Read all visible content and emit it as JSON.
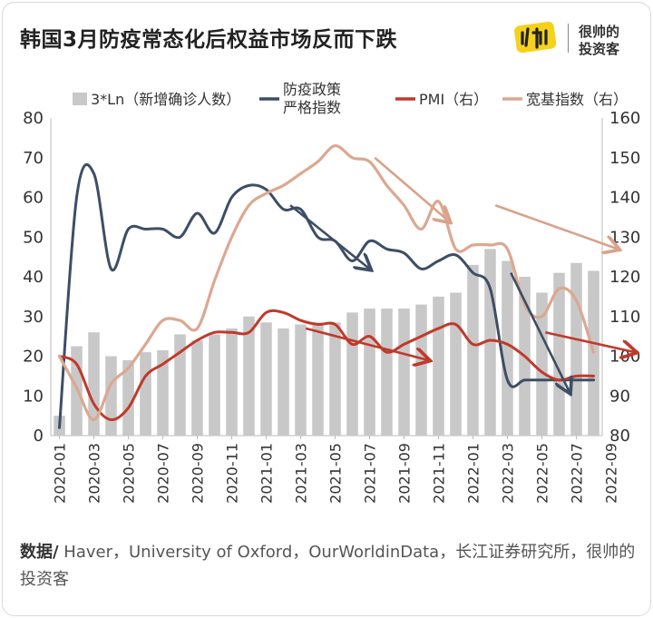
{
  "header": {
    "title": "韩国3月防疫常态化后权益市场反而下跌",
    "logo_line1": "很帅的",
    "logo_line2": "投资客"
  },
  "source": {
    "label": "数据/",
    "text": " Haver，University of Oxford，OurWorldinData，长江证券研究所，很帅的投资客"
  },
  "colors": {
    "bars": "#c8c8c8",
    "policy": "#3d4e66",
    "pmi": "#c0392b",
    "broad": "#dba890",
    "arrow_dark": "#3d4e66",
    "arrow_red": "#c0392b",
    "arrow_tan": "#d9a28a",
    "logo": "#f5d21a"
  },
  "chart_data": {
    "type": "bar+line",
    "x_ticks": [
      "2020-01",
      "2020-03",
      "2020-05",
      "2020-07",
      "2020-09",
      "2020-11",
      "2021-01",
      "2021-03",
      "2021-05",
      "2021-07",
      "2021-09",
      "2021-11",
      "2022-01",
      "2022-03",
      "2022-05",
      "2022-07",
      "2022-09"
    ],
    "ylim_left": [
      0,
      80
    ],
    "ylim_right": [
      80,
      160
    ],
    "y_ticks_left": [
      0,
      10,
      20,
      30,
      40,
      50,
      60,
      70,
      80
    ],
    "y_ticks_right": [
      80,
      90,
      100,
      110,
      120,
      130,
      140,
      150,
      160
    ],
    "legend": [
      {
        "key": "bars",
        "label": "3*Ln（新增确诊人数）"
      },
      {
        "key": "policy",
        "label1": "防疫政策",
        "label2": "严格指数"
      },
      {
        "key": "pmi",
        "label": "PMI（右）"
      },
      {
        "key": "broad",
        "label": "宽基指数（右）"
      }
    ],
    "series": [
      {
        "key": "bars",
        "type": "bar",
        "axis": "left",
        "values": [
          5,
          22.5,
          26,
          20,
          19,
          21,
          21.5,
          25.5,
          24,
          25.5,
          27,
          30,
          28.5,
          27,
          28,
          28.5,
          28.5,
          31,
          32,
          32,
          32,
          33,
          35,
          36,
          43,
          47,
          44,
          40,
          36,
          41,
          43.5,
          41.5
        ]
      },
      {
        "key": "policy",
        "type": "line",
        "axis": "left",
        "values": [
          2,
          60,
          66,
          42,
          52,
          52,
          52,
          50,
          56,
          51,
          60,
          63,
          62,
          57,
          57,
          50,
          49,
          44,
          49,
          47,
          46,
          42,
          44,
          45.5,
          41,
          37,
          14,
          14,
          14,
          14,
          14,
          14
        ]
      },
      {
        "key": "pmi",
        "type": "line",
        "axis": "right",
        "values": [
          100,
          98,
          88,
          84,
          87,
          95,
          98,
          101,
          104,
          106,
          106,
          106,
          111,
          111,
          109,
          108,
          108,
          103,
          105,
          101,
          103,
          105,
          107,
          108,
          103,
          104,
          103,
          100,
          96,
          94,
          95,
          95
        ]
      },
      {
        "key": "broad",
        "type": "line",
        "axis": "right",
        "values": [
          100,
          92,
          84,
          93,
          97,
          103,
          109,
          109,
          107,
          119,
          130,
          138,
          141,
          143,
          146,
          149,
          153,
          150,
          149,
          143,
          138,
          132,
          139,
          127,
          128,
          128,
          127,
          113,
          110,
          117,
          114,
          101
        ]
      }
    ]
  }
}
